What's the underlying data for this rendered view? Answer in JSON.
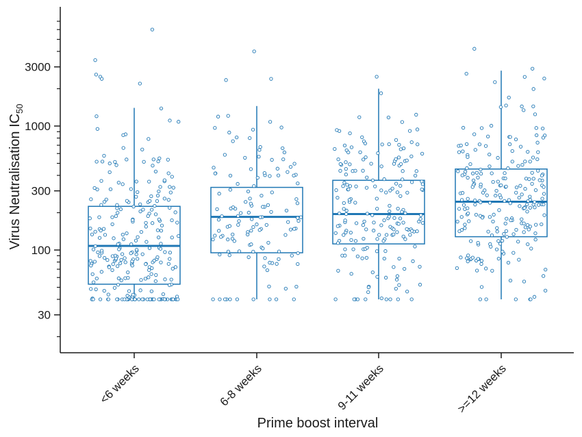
{
  "chart_data": {
    "type": "box",
    "xlabel": "Prime boost interval",
    "ylabel": "Virus Neutralisation IC",
    "ylabel_sub": "50",
    "yscale": "log",
    "ylim": [
      15,
      8000
    ],
    "yticks": [
      30,
      100,
      300,
      1000,
      3000
    ],
    "ytick_labels": [
      "30",
      "100",
      "300",
      "1000",
      "3000"
    ],
    "color": "#1f77b4",
    "categories": [
      "<6 weeks",
      "6-8 weeks",
      "9-11 weeks",
      ">=12 weeks"
    ],
    "boxes": [
      {
        "whisker_low": 40,
        "q1": 53,
        "median": 108,
        "q3": 225,
        "whisker_high": 1400
      },
      {
        "whisker_low": 40,
        "q1": 95,
        "median": 185,
        "q3": 320,
        "whisker_high": 1450
      },
      {
        "whisker_low": 40,
        "q1": 112,
        "median": 195,
        "q3": 365,
        "whisker_high": 2000
      },
      {
        "whisker_low": 40,
        "q1": 128,
        "median": 245,
        "q3": 450,
        "whisker_high": 2800
      }
    ],
    "points": [
      {
        "category": "<6 weeks",
        "n": 260,
        "outliers": [
          6000,
          3400,
          2600,
          2500,
          2400,
          2200
        ]
      },
      {
        "category": "6-8 weeks",
        "n": 130,
        "outliers": [
          4000,
          2400,
          2350
        ]
      },
      {
        "category": "9-11 weeks",
        "n": 200,
        "outliers": [
          2500
        ]
      },
      {
        "category": ">=12 weeks",
        "n": 230,
        "outliers": [
          4200,
          2900
        ]
      }
    ]
  }
}
